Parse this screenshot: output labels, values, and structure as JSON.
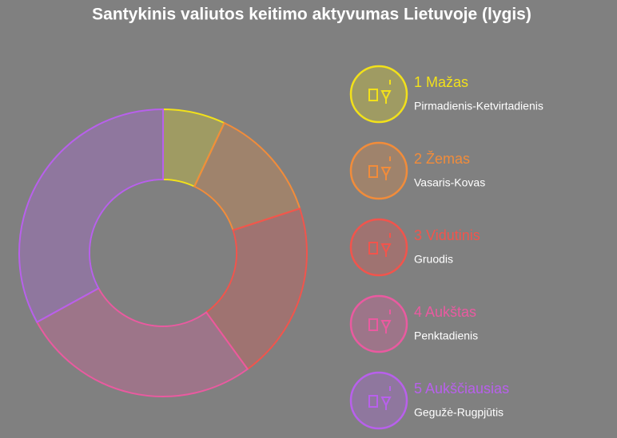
{
  "chart_data": {
    "type": "donut",
    "title": "Santykinis valiutos keitimo aktyvumas Lietuvoje (lygis)",
    "categories": [
      "1 Mažas",
      "2 Žemas",
      "3 Vidutinis",
      "4 Aukštas",
      "5 Aukščiausias"
    ],
    "descriptions": [
      "Pirmadienis-Ketvirtadienis",
      "Vasaris-Kovas",
      "Gruodis",
      "Penktadienis",
      "Gegužė-Rugpjūtis"
    ],
    "values": [
      7,
      13,
      20,
      27,
      33
    ],
    "colors": [
      "#f2e11a",
      "#f28c3a",
      "#f2544c",
      "#ea5aa0",
      "#b860ec"
    ]
  }
}
